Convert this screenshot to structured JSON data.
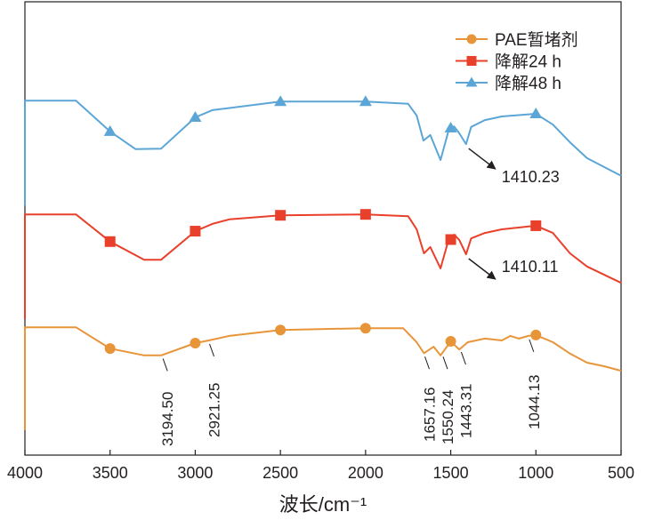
{
  "chart_data": {
    "type": "line",
    "title": "",
    "xlabel": "波长/cm⁻¹",
    "ylabel": "",
    "xlim": [
      4000,
      500
    ],
    "ylim": [
      0,
      100
    ],
    "x_reversed": true,
    "xticks": [
      4000,
      3500,
      3000,
      2500,
      2000,
      1500,
      1000,
      500
    ],
    "xtick_labels": [
      "4000",
      "3500",
      "3000",
      "2500",
      "2000",
      "1500",
      "1000",
      "500"
    ],
    "y_ticks_shown": false,
    "grid": false,
    "legend_position": "top-right",
    "marker_x": [
      3500,
      3000,
      2500,
      2000,
      1500,
      1000
    ],
    "series": [
      {
        "name": "PAE暂堵剂",
        "color": "#e8953a",
        "marker": "circle",
        "start_drop_to": 5.5,
        "x": [
          4000,
          3700,
          3500,
          3300,
          3200,
          3000,
          2921,
          2800,
          2500,
          2000,
          1780,
          1700,
          1657,
          1600,
          1560,
          1500,
          1450,
          1400,
          1300,
          1200,
          1150,
          1100,
          1044,
          1000,
          900,
          800,
          700,
          600,
          500
        ],
        "y": [
          28.2,
          28.2,
          23.5,
          22,
          22,
          24.7,
          25.3,
          26.3,
          27.6,
          28,
          28,
          24.9,
          22.5,
          23.9,
          22,
          25.1,
          23.3,
          24.9,
          25.7,
          25.3,
          26.3,
          25.7,
          26.3,
          26.5,
          24.9,
          22.4,
          20.4,
          19.6,
          18.6
        ]
      },
      {
        "name": "降解24 h",
        "color": "#e8402a",
        "marker": "square",
        "start_drop_to": 30,
        "x": [
          4000,
          3700,
          3500,
          3300,
          3200,
          3000,
          2900,
          2800,
          2500,
          2000,
          1750,
          1700,
          1657,
          1620,
          1560,
          1520,
          1480,
          1450,
          1410,
          1380,
          1300,
          1200,
          1000,
          900,
          800,
          700,
          500
        ],
        "y": [
          53.1,
          53.1,
          47.1,
          43.1,
          43.1,
          49.4,
          51,
          52,
          52.9,
          53.1,
          52.7,
          49.8,
          44.5,
          45.9,
          41.2,
          46.5,
          48.6,
          47.5,
          44.3,
          47.8,
          49,
          49.8,
          50.6,
          49,
          44.5,
          41.6,
          38
        ]
      },
      {
        "name": "降解48 h",
        "color": "#5ba6d6",
        "marker": "triangle",
        "start_drop_to": 55,
        "x": [
          4000,
          3700,
          3500,
          3350,
          3200,
          3000,
          2900,
          2500,
          2000,
          1750,
          1700,
          1660,
          1620,
          1560,
          1510,
          1480,
          1450,
          1410,
          1380,
          1300,
          1200,
          1000,
          900,
          800,
          700,
          500
        ],
        "y": [
          78.2,
          78.2,
          71.4,
          67.5,
          67.6,
          74.5,
          76.1,
          78,
          78,
          77.5,
          74.9,
          69.4,
          70.6,
          65.1,
          72,
          72.5,
          71,
          68.6,
          72.4,
          73.9,
          74.7,
          75.3,
          72.9,
          69,
          65.5,
          61.6
        ]
      }
    ],
    "peak_labels": [
      {
        "text": "3194.50",
        "x": 3194.5
      },
      {
        "text": "2921.25",
        "x": 2921.25
      },
      {
        "text": "1657.16",
        "x": 1657.16
      },
      {
        "text": "1550.24",
        "x": 1550.24
      },
      {
        "text": "1443.31",
        "x": 1443.31
      },
      {
        "text": "1044.13",
        "x": 1044.13
      }
    ],
    "arrow_annotations": [
      {
        "text": "1410.23",
        "series": "降解48 h",
        "x": 1410.23
      },
      {
        "text": "1410.11",
        "series": "降解24 h",
        "x": 1410.11
      }
    ]
  }
}
